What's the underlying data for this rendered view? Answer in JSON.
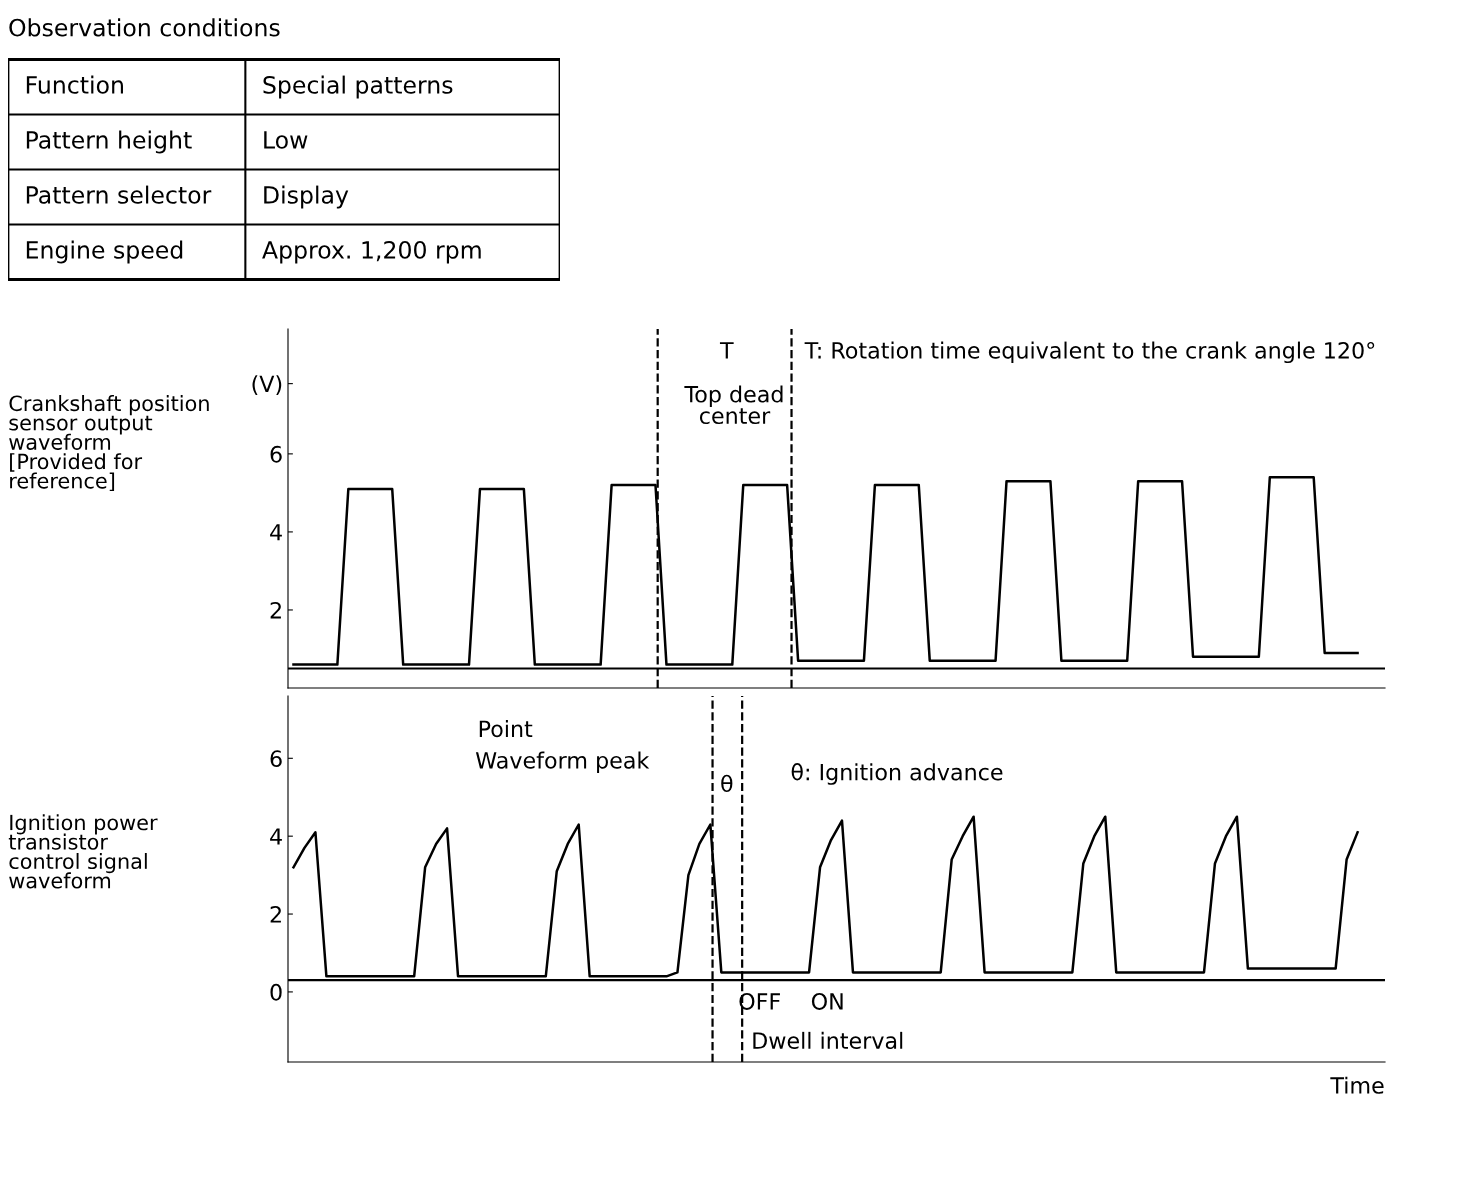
{
  "chart_data": [
    {
      "type": "other",
      "title": "Observation conditions",
      "annotations": [
        "Function",
        "Special patterns",
        "Pattern height",
        "Low",
        "Pattern selector",
        "Display",
        "Engine speed",
        "Approx. 1,200 rpm"
      ]
    },
    {
      "type": "line",
      "ylabel": "Crankshaft position\nsensor output\nwaveform\n[Provided for\nreference]",
      "categories": [
        null,
        null,
        null,
        null,
        null,
        null,
        null,
        null,
        null,
        null,
        null,
        null,
        null,
        null,
        null,
        null,
        null,
        null,
        null,
        null,
        null,
        null,
        null,
        null,
        null,
        null,
        null,
        null,
        null,
        null,
        null,
        null,
        null,
        null,
        null,
        null,
        null,
        null,
        null,
        null,
        null,
        null,
        null,
        null,
        null,
        null,
        null,
        null,
        null,
        null,
        null,
        null,
        null,
        null,
        null,
        null,
        null,
        null,
        null,
        null,
        null,
        null,
        null,
        null,
        null,
        null,
        null,
        null,
        null,
        null,
        null,
        null,
        null,
        null,
        null,
        null,
        null,
        null,
        null,
        null,
        null,
        null,
        null,
        null,
        null,
        null,
        null,
        null,
        null,
        null,
        null,
        null,
        null,
        null,
        null,
        null,
        null,
        null,
        null,
        null
      ],
      "ylim": [
        0,
        9.2
      ],
      "yticks": [
        2,
        4,
        6,
        {
          "value": 7.8,
          "label": "(V)"
        }
      ],
      "tick_labels": "y",
      "marker": "none",
      "line_style": "solid",
      "series": [
        {
          "color": "#000000",
          "values": [
            0.6,
            0.6,
            0.6,
            0.6,
            0.6,
            5.1,
            5.1,
            5.1,
            5.1,
            5.1,
            0.6,
            0.6,
            0.6,
            0.6,
            0.6,
            0.6,
            0.6,
            5.1,
            5.1,
            5.1,
            5.1,
            5.1,
            0.6,
            0.6,
            0.6,
            0.6,
            0.6,
            0.6,
            0.6,
            5.2,
            5.2,
            5.2,
            5.2,
            5.2,
            0.6,
            0.6,
            0.6,
            0.6,
            0.6,
            0.6,
            0.6,
            5.2,
            5.2,
            5.2,
            5.2,
            5.2,
            0.7,
            0.7,
            0.7,
            0.7,
            0.7,
            0.7,
            0.7,
            5.2,
            5.2,
            5.2,
            5.2,
            5.2,
            0.7,
            0.7,
            0.7,
            0.7,
            0.7,
            0.7,
            0.7,
            5.3,
            5.3,
            5.3,
            5.3,
            5.3,
            0.7,
            0.7,
            0.7,
            0.7,
            0.7,
            0.7,
            0.7,
            5.3,
            5.3,
            5.3,
            5.3,
            5.3,
            0.8,
            0.8,
            0.8,
            0.8,
            0.8,
            0.8,
            0.8,
            5.4,
            5.4,
            5.4,
            5.4,
            5.4,
            0.9,
            0.9,
            0.9,
            0.9,
            null,
            null
          ]
        }
      ],
      "ref_lines": [
        {
          "axis": "y",
          "value": 0.5,
          "color": "#000000",
          "line_style": "solid"
        }
      ],
      "annotations": [
        "T",
        "T: Rotation time equivalent to the crank angle 120°",
        "Top dead\ncenter"
      ]
    },
    {
      "type": "line",
      "ylabel": "Ignition power\ntransistor\ncontrol signal\nwaveform",
      "xlabel": "Time",
      "categories": [
        null,
        null,
        null,
        null,
        null,
        null,
        null,
        null,
        null,
        null,
        null,
        null,
        null,
        null,
        null,
        null,
        null,
        null,
        null,
        null,
        null,
        null,
        null,
        null,
        null,
        null,
        null,
        null,
        null,
        null,
        null,
        null,
        null,
        null,
        null,
        null,
        null,
        null,
        null,
        null,
        null,
        null,
        null,
        null,
        null,
        null,
        null,
        null,
        null,
        null,
        null,
        null,
        null,
        null,
        null,
        null,
        null,
        null,
        null,
        null,
        null,
        null,
        null,
        null,
        null,
        null,
        null,
        null,
        null,
        null,
        null,
        null,
        null,
        null,
        null,
        null,
        null,
        null,
        null,
        null,
        null,
        null,
        null,
        null,
        null,
        null,
        null,
        null,
        null,
        null,
        null,
        null,
        null,
        null,
        null,
        null,
        null,
        null,
        null,
        null
      ],
      "ylim": [
        -1.8,
        7.6
      ],
      "yticks": [
        0,
        2,
        4,
        6
      ],
      "tick_labels": "y",
      "marker": "none",
      "line_style": "solid",
      "series": [
        {
          "color": "#000000",
          "values": [
            3.2,
            3.7,
            4.1,
            0.4,
            0.4,
            0.4,
            0.4,
            0.4,
            0.4,
            0.4,
            0.4,
            0.4,
            3.2,
            3.8,
            4.2,
            0.4,
            0.4,
            0.4,
            0.4,
            0.4,
            0.4,
            0.4,
            0.4,
            0.4,
            3.1,
            3.8,
            4.3,
            0.4,
            0.4,
            0.4,
            0.4,
            0.4,
            0.4,
            0.4,
            0.4,
            0.5,
            3.0,
            3.8,
            4.3,
            0.5,
            0.5,
            0.5,
            0.5,
            0.5,
            0.5,
            0.5,
            0.5,
            0.5,
            3.2,
            3.9,
            4.4,
            0.5,
            0.5,
            0.5,
            0.5,
            0.5,
            0.5,
            0.5,
            0.5,
            0.5,
            3.4,
            4.0,
            4.5,
            0.5,
            0.5,
            0.5,
            0.5,
            0.5,
            0.5,
            0.5,
            0.5,
            0.5,
            3.3,
            4.0,
            4.5,
            0.5,
            0.5,
            0.5,
            0.5,
            0.5,
            0.5,
            0.5,
            0.5,
            0.5,
            3.3,
            4.0,
            4.5,
            0.6,
            0.6,
            0.6,
            0.6,
            0.6,
            0.6,
            0.6,
            0.6,
            0.6,
            3.4,
            4.1,
            null,
            null
          ]
        }
      ],
      "ref_lines": [
        {
          "axis": "y",
          "value": 0.3,
          "color": "#000000",
          "line_style": "solid"
        }
      ],
      "annotations": [
        "Point",
        "Waveform peak",
        "θ",
        "θ: Ignition advance",
        "OFF",
        "ON",
        "Dwell interval"
      ]
    }
  ]
}
